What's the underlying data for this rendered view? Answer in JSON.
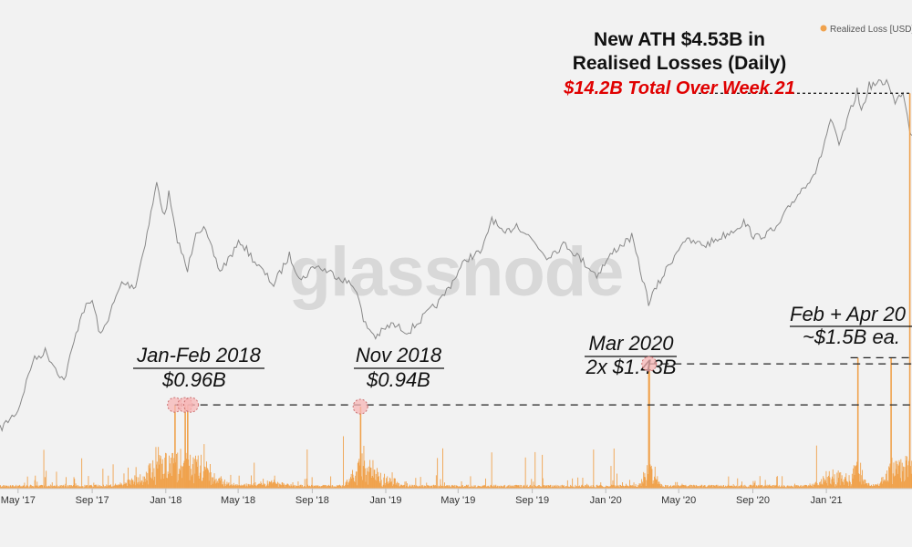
{
  "watermark": "glassnode",
  "legend": {
    "label": "Realized Loss [USD]",
    "color": "#f0a24d"
  },
  "headline": {
    "line1": "New ATH $4.53B in",
    "line2": "Realised Losses (Daily)",
    "line3": "$14.2B Total Over Week 21",
    "line3_color": "#e00000"
  },
  "annotations": [
    {
      "id": "jan-feb-2018",
      "line1": "Jan-Feb 2018",
      "line2": "$0.96B"
    },
    {
      "id": "nov-2018",
      "line1": "Nov 2018",
      "line2": "$0.94B"
    },
    {
      "id": "mar-2020",
      "line1": "Mar 2020",
      "line2": "2x $1.43B"
    },
    {
      "id": "feb-apr-2021",
      "line1": "Feb + Apr 20",
      "line2": "~$1.5B ea."
    }
  ],
  "chart_data": {
    "type": "line",
    "x_ticks": [
      "May '17",
      "Sep '17",
      "Jan '18",
      "May '18",
      "Sep '18",
      "Jan '19",
      "May '19",
      "Sep '19",
      "Jan '20",
      "May '20",
      "Sep '20",
      "Jan '21"
    ],
    "x_range": [
      "2017-04-01",
      "2021-05-23"
    ],
    "y_range_billions_usd": [
      0,
      4.7
    ],
    "grid": false,
    "legend_position": "top-right",
    "series": [
      {
        "name": "Realized Loss [USD]",
        "type": "bar",
        "color": "#f0a24d",
        "unit": "billions USD",
        "notable_points": [
          {
            "date": "2018-01-16",
            "value": 0.96
          },
          {
            "date": "2018-02-02",
            "value": 0.96
          },
          {
            "date": "2018-02-06",
            "value": 0.96
          },
          {
            "date": "2018-11-20",
            "value": 0.94
          },
          {
            "date": "2020-03-12",
            "value": 1.43
          },
          {
            "date": "2020-03-13",
            "value": 1.43
          },
          {
            "date": "2021-02-22",
            "value": 1.5
          },
          {
            "date": "2021-04-18",
            "value": 1.5
          },
          {
            "date": "2021-05-19",
            "value": 4.53
          }
        ]
      },
      {
        "type": "line",
        "color": "#888888",
        "points": [
          [
            "2017-04-01",
            1080
          ],
          [
            "2017-05-01",
            1350
          ],
          [
            "2017-05-25",
            2400
          ],
          [
            "2017-06-15",
            2700
          ],
          [
            "2017-07-16",
            1900
          ],
          [
            "2017-08-15",
            4300
          ],
          [
            "2017-09-01",
            4900
          ],
          [
            "2017-09-15",
            3200
          ],
          [
            "2017-10-20",
            6000
          ],
          [
            "2017-11-12",
            5800
          ],
          [
            "2017-12-01",
            10800
          ],
          [
            "2017-12-17",
            19300
          ],
          [
            "2017-12-30",
            13000
          ],
          [
            "2018-01-06",
            17100
          ],
          [
            "2018-01-17",
            10900
          ],
          [
            "2018-02-06",
            6900
          ],
          [
            "2018-02-20",
            11200
          ],
          [
            "2018-03-05",
            11400
          ],
          [
            "2018-04-01",
            6900
          ],
          [
            "2018-05-05",
            9800
          ],
          [
            "2018-06-01",
            7500
          ],
          [
            "2018-06-29",
            5900
          ],
          [
            "2018-07-25",
            8300
          ],
          [
            "2018-08-14",
            6200
          ],
          [
            "2018-09-05",
            7400
          ],
          [
            "2018-10-15",
            6500
          ],
          [
            "2018-11-14",
            5600
          ],
          [
            "2018-11-25",
            3800
          ],
          [
            "2018-12-15",
            3200
          ],
          [
            "2019-01-10",
            3700
          ],
          [
            "2019-02-08",
            3400
          ],
          [
            "2019-04-02",
            4900
          ],
          [
            "2019-05-15",
            8000
          ],
          [
            "2019-06-10",
            8700
          ],
          [
            "2019-06-26",
            13000
          ],
          [
            "2019-07-15",
            10500
          ],
          [
            "2019-08-06",
            12000
          ],
          [
            "2019-09-01",
            10000
          ],
          [
            "2019-09-25",
            8200
          ],
          [
            "2019-10-26",
            9500
          ],
          [
            "2019-12-17",
            6600
          ],
          [
            "2020-01-15",
            8800
          ],
          [
            "2020-02-13",
            10300
          ],
          [
            "2020-03-12",
            4800
          ],
          [
            "2020-04-10",
            7000
          ],
          [
            "2020-05-08",
            9900
          ],
          [
            "2020-06-15",
            9400
          ],
          [
            "2020-07-27",
            11000
          ],
          [
            "2020-08-17",
            12300
          ],
          [
            "2020-09-05",
            10200
          ],
          [
            "2020-10-10",
            11300
          ],
          [
            "2020-11-05",
            15500
          ],
          [
            "2020-12-17",
            23000
          ],
          [
            "2021-01-08",
            41000
          ],
          [
            "2021-01-22",
            30000
          ],
          [
            "2021-02-21",
            57000
          ],
          [
            "2021-02-28",
            45000
          ],
          [
            "2021-03-13",
            61000
          ],
          [
            "2021-04-14",
            64000
          ],
          [
            "2021-04-25",
            49000
          ],
          [
            "2021-05-08",
            58000
          ],
          [
            "2021-05-19",
            37000
          ],
          [
            "2021-05-23",
            34000
          ]
        ]
      }
    ]
  }
}
